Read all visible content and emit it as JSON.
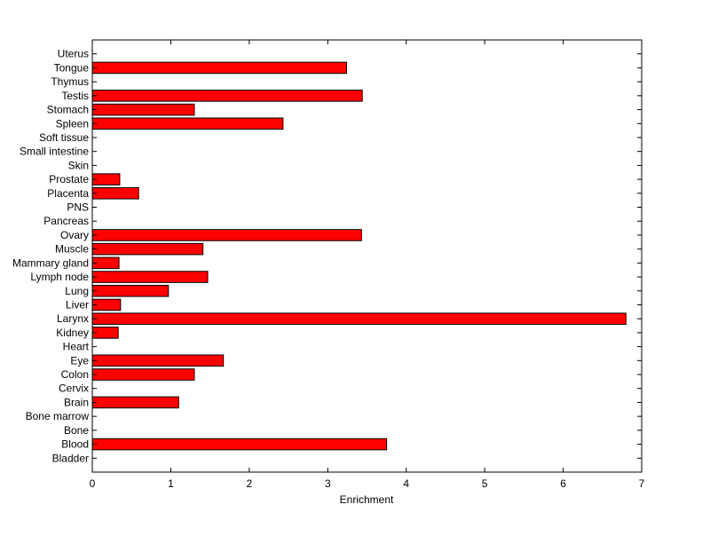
{
  "chart_data": {
    "type": "bar",
    "orientation": "horizontal",
    "xlabel": "Enrichment",
    "ylabel": "",
    "title": "",
    "xlim": [
      0,
      7
    ],
    "xticks": [
      0,
      1,
      2,
      3,
      4,
      5,
      6,
      7
    ],
    "grid": false,
    "legend": "none",
    "bar_color": "#ff0000",
    "categories": [
      "Bladder",
      "Blood",
      "Bone",
      "Bone marrow",
      "Brain",
      "Cervix",
      "Colon",
      "Eye",
      "Heart",
      "Kidney",
      "Larynx",
      "Liver",
      "Lung",
      "Lymph node",
      "Mammary gland",
      "Muscle",
      "Ovary",
      "Pancreas",
      "PNS",
      "Placenta",
      "Prostate",
      "Skin",
      "Small intestine",
      "Soft tissue",
      "Spleen",
      "Stomach",
      "Testis",
      "Thymus",
      "Tongue",
      "Uterus"
    ],
    "values": [
      0,
      3.75,
      0,
      0,
      1.1,
      0,
      1.3,
      1.67,
      0,
      0.33,
      6.8,
      0.36,
      0.97,
      1.47,
      0.34,
      1.41,
      3.43,
      0,
      0,
      0.59,
      0.35,
      0,
      0,
      0,
      2.43,
      1.3,
      3.44,
      0,
      3.24,
      0
    ]
  }
}
